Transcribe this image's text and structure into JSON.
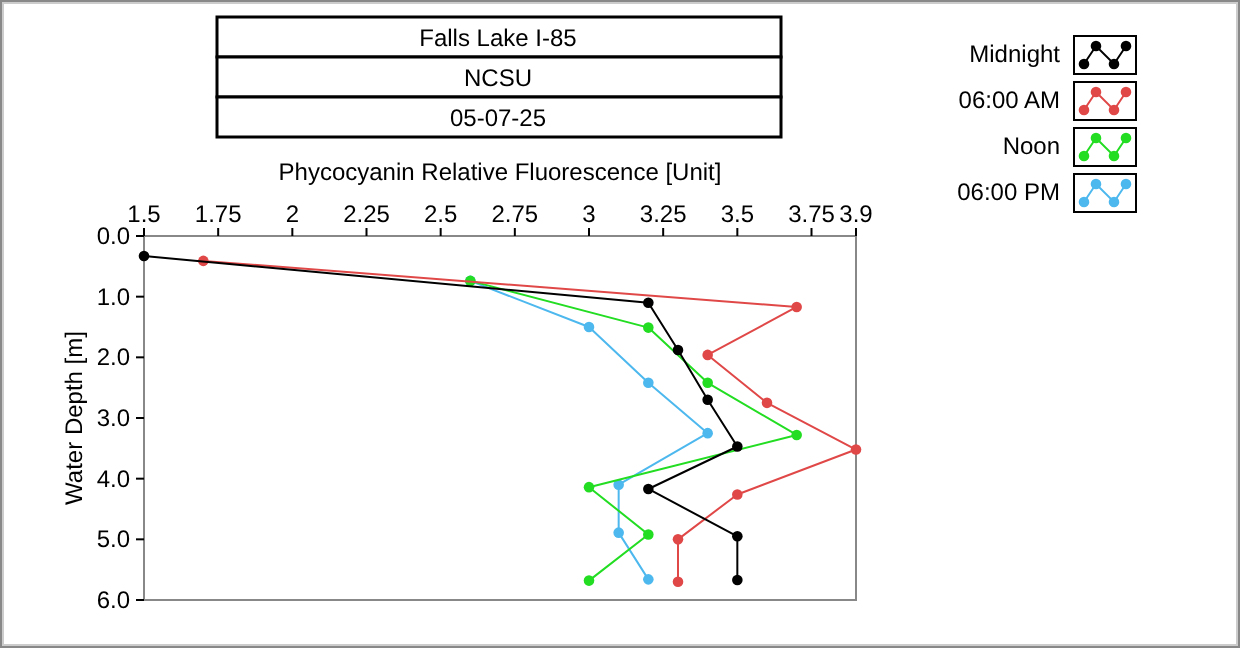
{
  "chart_data": {
    "type": "line",
    "title": "Falls Lake I-85",
    "subtitle": "NCSU",
    "annotations": [
      "05-07-25"
    ],
    "xlabel": "Phycocyanin Relative Fluorescence [Unit]",
    "ylabel": "Water Depth [m]",
    "xlim": [
      1.5,
      3.9
    ],
    "xticks": [
      1.5,
      1.75,
      2,
      2.25,
      2.5,
      2.75,
      3,
      3.25,
      3.5,
      3.75,
      3.9
    ],
    "ylim": [
      6,
      0
    ],
    "yticks": [
      {
        "value": 0,
        "label": "0.0"
      },
      {
        "value": 1,
        "label": "1.0"
      },
      {
        "value": 2,
        "label": "2.0"
      },
      {
        "value": 3,
        "label": "3.0"
      },
      {
        "value": 4,
        "label": "4.0"
      },
      {
        "value": 5,
        "label": "5.0"
      },
      {
        "value": 6,
        "label": "6.0"
      }
    ],
    "grid": false,
    "legend": "right",
    "marker": "circle",
    "line_style": "solid",
    "series": [
      {
        "name": "Midnight",
        "color": "#000000",
        "x": [
          1.5,
          3.2,
          3.3,
          3.4,
          3.5,
          3.2,
          3.5,
          3.5
        ],
        "values": [
          0.33,
          1.1,
          1.88,
          2.7,
          3.47,
          4.17,
          4.95,
          5.67
        ]
      },
      {
        "name": "06:00 AM",
        "color": "#e04848",
        "x": [
          1.7,
          3.7,
          3.4,
          3.6,
          3.9,
          3.5,
          3.3,
          3.3
        ],
        "values": [
          0.41,
          1.17,
          1.96,
          2.75,
          3.52,
          4.26,
          5.0,
          5.7
        ]
      },
      {
        "name": "Noon",
        "color": "#22dd22",
        "x": [
          2.6,
          3.2,
          3.4,
          3.7,
          3.0,
          3.2,
          3.0
        ],
        "values": [
          0.74,
          1.51,
          2.42,
          3.28,
          4.14,
          4.92,
          5.68
        ]
      },
      {
        "name": "06:00 PM",
        "color": "#4db8ee",
        "x": [
          2.6,
          3.0,
          3.2,
          3.4,
          3.1,
          3.1,
          3.2
        ],
        "values": [
          0.74,
          1.5,
          2.42,
          3.25,
          4.1,
          4.89,
          5.66
        ]
      }
    ]
  }
}
